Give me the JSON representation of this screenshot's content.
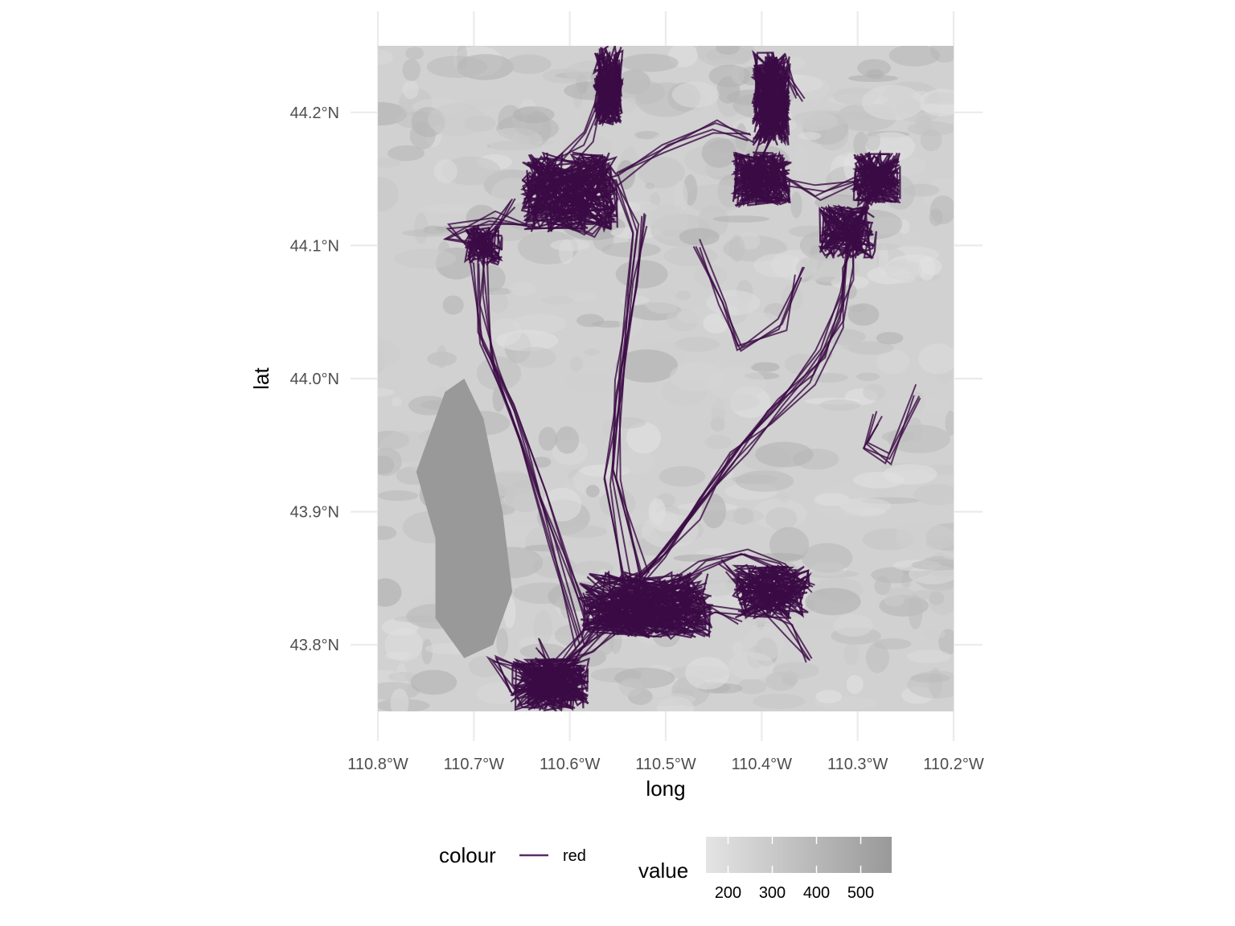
{
  "chart_data": {
    "type": "map",
    "xlabel": "long",
    "ylabel": "lat",
    "xlim": [
      -110.8,
      -110.2
    ],
    "ylim": [
      43.75,
      44.25
    ],
    "x_ticks": [
      {
        "value": -110.8,
        "label": "110.8°W"
      },
      {
        "value": -110.7,
        "label": "110.7°W"
      },
      {
        "value": -110.6,
        "label": "110.6°W"
      },
      {
        "value": -110.5,
        "label": "110.5°W"
      },
      {
        "value": -110.4,
        "label": "110.4°W"
      },
      {
        "value": -110.3,
        "label": "110.3°W"
      },
      {
        "value": -110.2,
        "label": "110.2°W"
      }
    ],
    "y_ticks": [
      {
        "value": 43.8,
        "label": "43.8°N"
      },
      {
        "value": 43.9,
        "label": "43.9°N"
      },
      {
        "value": 44.0,
        "label": "44.0°N"
      },
      {
        "value": 44.1,
        "label": "44.1°N"
      },
      {
        "value": 44.2,
        "label": "44.2°N"
      }
    ],
    "raster_range": [
      150,
      570
    ],
    "raster_colors": [
      "#e4e4e4",
      "#999999"
    ],
    "track_color": "#3b0a45",
    "legend_colour": {
      "title": "colour",
      "entries": [
        {
          "label": "red",
          "color": "#5a2d63"
        }
      ]
    },
    "legend_value": {
      "title": "value",
      "ticks": [
        200,
        300,
        400,
        500
      ],
      "range": [
        150,
        570
      ]
    },
    "tracks": [
      [
        [
          -110.66,
          43.76
        ],
        [
          -110.62,
          43.78
        ],
        [
          -110.58,
          43.8
        ],
        [
          -110.54,
          43.82
        ],
        [
          -110.5,
          43.84
        ],
        [
          -110.46,
          43.86
        ],
        [
          -110.42,
          43.87
        ],
        [
          -110.38,
          43.86
        ],
        [
          -110.35,
          43.84
        ]
      ],
      [
        [
          -110.64,
          43.76
        ],
        [
          -110.6,
          43.79
        ],
        [
          -110.55,
          43.83
        ],
        [
          -110.51,
          43.86
        ],
        [
          -110.47,
          43.9
        ],
        [
          -110.43,
          43.94
        ],
        [
          -110.39,
          43.97
        ],
        [
          -110.35,
          44.0
        ],
        [
          -110.32,
          44.04
        ],
        [
          -110.31,
          44.08
        ],
        [
          -110.3,
          44.11
        ]
      ],
      [
        [
          -110.63,
          43.77
        ],
        [
          -110.58,
          43.81
        ],
        [
          -110.54,
          43.84
        ],
        [
          -110.5,
          43.87
        ],
        [
          -110.46,
          43.91
        ],
        [
          -110.42,
          43.95
        ],
        [
          -110.38,
          43.98
        ],
        [
          -110.34,
          44.02
        ],
        [
          -110.32,
          44.06
        ],
        [
          -110.31,
          44.1
        ],
        [
          -110.28,
          44.15
        ]
      ],
      [
        [
          -110.52,
          43.85
        ],
        [
          -110.55,
          43.93
        ],
        [
          -110.55,
          44.0
        ],
        [
          -110.54,
          44.06
        ],
        [
          -110.53,
          44.11
        ],
        [
          -110.55,
          44.15
        ]
      ],
      [
        [
          -110.54,
          43.84
        ],
        [
          -110.56,
          43.92
        ],
        [
          -110.55,
          43.99
        ],
        [
          -110.53,
          44.07
        ],
        [
          -110.52,
          44.12
        ]
      ],
      [
        [
          -110.59,
          43.8
        ],
        [
          -110.62,
          43.88
        ],
        [
          -110.65,
          43.95
        ],
        [
          -110.68,
          44.01
        ],
        [
          -110.69,
          44.06
        ],
        [
          -110.69,
          44.1
        ],
        [
          -110.66,
          44.13
        ]
      ],
      [
        [
          -110.58,
          43.82
        ],
        [
          -110.63,
          43.91
        ],
        [
          -110.66,
          43.98
        ],
        [
          -110.69,
          44.03
        ],
        [
          -110.7,
          44.09
        ]
      ],
      [
        [
          -110.64,
          44.13
        ],
        [
          -110.61,
          44.16
        ],
        [
          -110.58,
          44.18
        ],
        [
          -110.56,
          44.22
        ],
        [
          -110.55,
          44.24
        ]
      ],
      [
        [
          -110.62,
          44.12
        ],
        [
          -110.58,
          44.11
        ],
        [
          -110.55,
          44.13
        ],
        [
          -110.57,
          44.16
        ],
        [
          -110.6,
          44.15
        ]
      ],
      [
        [
          -110.41,
          44.15
        ],
        [
          -110.39,
          44.19
        ],
        [
          -110.4,
          44.23
        ],
        [
          -110.38,
          44.24
        ],
        [
          -110.36,
          44.21
        ]
      ],
      [
        [
          -110.42,
          44.13
        ],
        [
          -110.38,
          44.15
        ],
        [
          -110.34,
          44.14
        ],
        [
          -110.3,
          44.15
        ],
        [
          -110.27,
          44.16
        ]
      ],
      [
        [
          -110.55,
          44.15
        ],
        [
          -110.5,
          44.17
        ],
        [
          -110.45,
          44.19
        ],
        [
          -110.41,
          44.18
        ]
      ],
      [
        [
          -110.47,
          44.1
        ],
        [
          -110.44,
          44.06
        ],
        [
          -110.42,
          44.02
        ],
        [
          -110.38,
          44.04
        ],
        [
          -110.36,
          44.08
        ]
      ],
      [
        [
          -110.44,
          43.86
        ],
        [
          -110.4,
          43.83
        ],
        [
          -110.37,
          43.81
        ],
        [
          -110.35,
          43.79
        ]
      ],
      [
        [
          -110.66,
          43.76
        ],
        [
          -110.68,
          43.79
        ],
        [
          -110.64,
          43.78
        ],
        [
          -110.61,
          43.77
        ],
        [
          -110.63,
          43.8
        ]
      ],
      [
        [
          -110.53,
          43.83
        ],
        [
          -110.49,
          43.81
        ],
        [
          -110.45,
          43.83
        ],
        [
          -110.42,
          43.82
        ]
      ],
      [
        [
          -110.28,
          43.97
        ],
        [
          -110.29,
          43.95
        ],
        [
          -110.27,
          43.94
        ],
        [
          -110.24,
          43.99
        ]
      ],
      [
        [
          -110.7,
          44.1
        ],
        [
          -110.73,
          44.11
        ],
        [
          -110.68,
          44.12
        ],
        [
          -110.64,
          44.11
        ]
      ]
    ],
    "density_clusters": [
      {
        "x": -110.6,
        "y": 44.14,
        "spread": [
          0.05,
          0.03
        ],
        "count": 40
      },
      {
        "x": -110.56,
        "y": 44.22,
        "spread": [
          0.015,
          0.03
        ],
        "count": 25
      },
      {
        "x": -110.39,
        "y": 44.21,
        "spread": [
          0.02,
          0.035
        ],
        "count": 35
      },
      {
        "x": -110.4,
        "y": 44.15,
        "spread": [
          0.03,
          0.02
        ],
        "count": 30
      },
      {
        "x": -110.28,
        "y": 44.15,
        "spread": [
          0.025,
          0.02
        ],
        "count": 25
      },
      {
        "x": -110.31,
        "y": 44.11,
        "spread": [
          0.03,
          0.02
        ],
        "count": 20
      },
      {
        "x": -110.69,
        "y": 44.1,
        "spread": [
          0.02,
          0.015
        ],
        "count": 15
      },
      {
        "x": -110.52,
        "y": 43.83,
        "spread": [
          0.07,
          0.025
        ],
        "count": 45
      },
      {
        "x": -110.62,
        "y": 43.77,
        "spread": [
          0.04,
          0.02
        ],
        "count": 35
      },
      {
        "x": -110.39,
        "y": 43.84,
        "spread": [
          0.04,
          0.02
        ],
        "count": 25
      }
    ]
  }
}
